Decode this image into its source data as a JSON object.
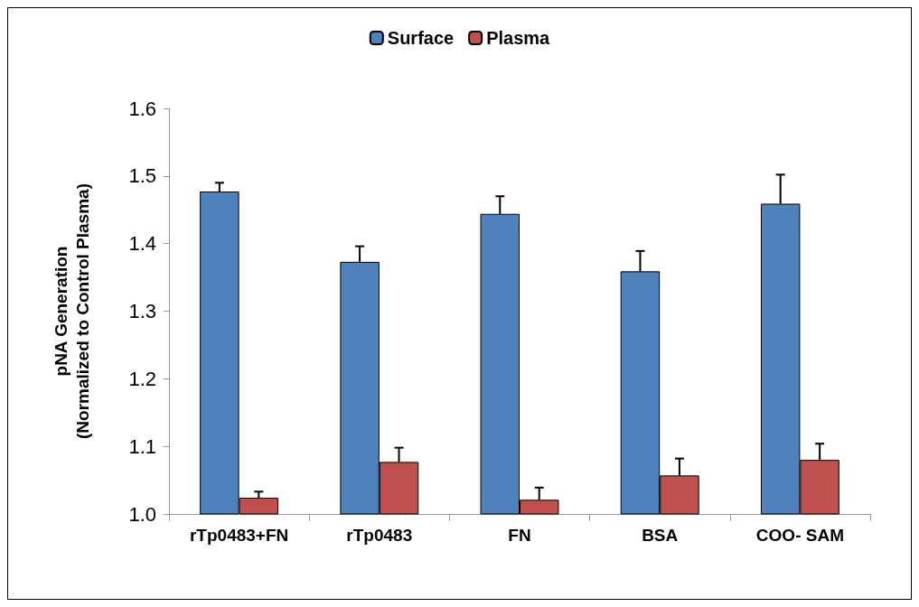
{
  "chart_data": {
    "type": "bar",
    "ylabel": "pNA Generation\n(Normalized to Control Plasma)",
    "categories": [
      "rTp0483+FN",
      "rTp0483",
      "FN",
      "BSA",
      "COO- SAM"
    ],
    "ylim": [
      1.0,
      1.6
    ],
    "yticks": [
      {
        "value": 1.0,
        "label": "1.0"
      },
      {
        "value": 1.1,
        "label": "1.1"
      },
      {
        "value": 1.2,
        "label": "1.2"
      },
      {
        "value": 1.3,
        "label": "1.3"
      },
      {
        "value": 1.4,
        "label": "1.4"
      },
      {
        "value": 1.5,
        "label": "1.5"
      },
      {
        "value": 1.6,
        "label": "1.6"
      }
    ],
    "legend": "top",
    "grid": false,
    "series": [
      {
        "name": "Surface",
        "color": "#4f81bd",
        "values": [
          1.477,
          1.373,
          1.444,
          1.359,
          1.459
        ],
        "errors": [
          [
            1.477,
            1.49
          ],
          [
            1.373,
            1.396
          ],
          [
            1.444,
            1.47
          ],
          [
            1.359,
            1.389
          ],
          [
            1.459,
            1.502
          ]
        ]
      },
      {
        "name": "Plasma",
        "color": "#c0504d",
        "values": [
          1.024,
          1.077,
          1.021,
          1.057,
          1.08
        ],
        "errors": [
          [
            1.024,
            1.033
          ],
          [
            1.077,
            1.098
          ],
          [
            1.021,
            1.039
          ],
          [
            1.057,
            1.082
          ],
          [
            1.08,
            1.104
          ]
        ]
      }
    ]
  }
}
